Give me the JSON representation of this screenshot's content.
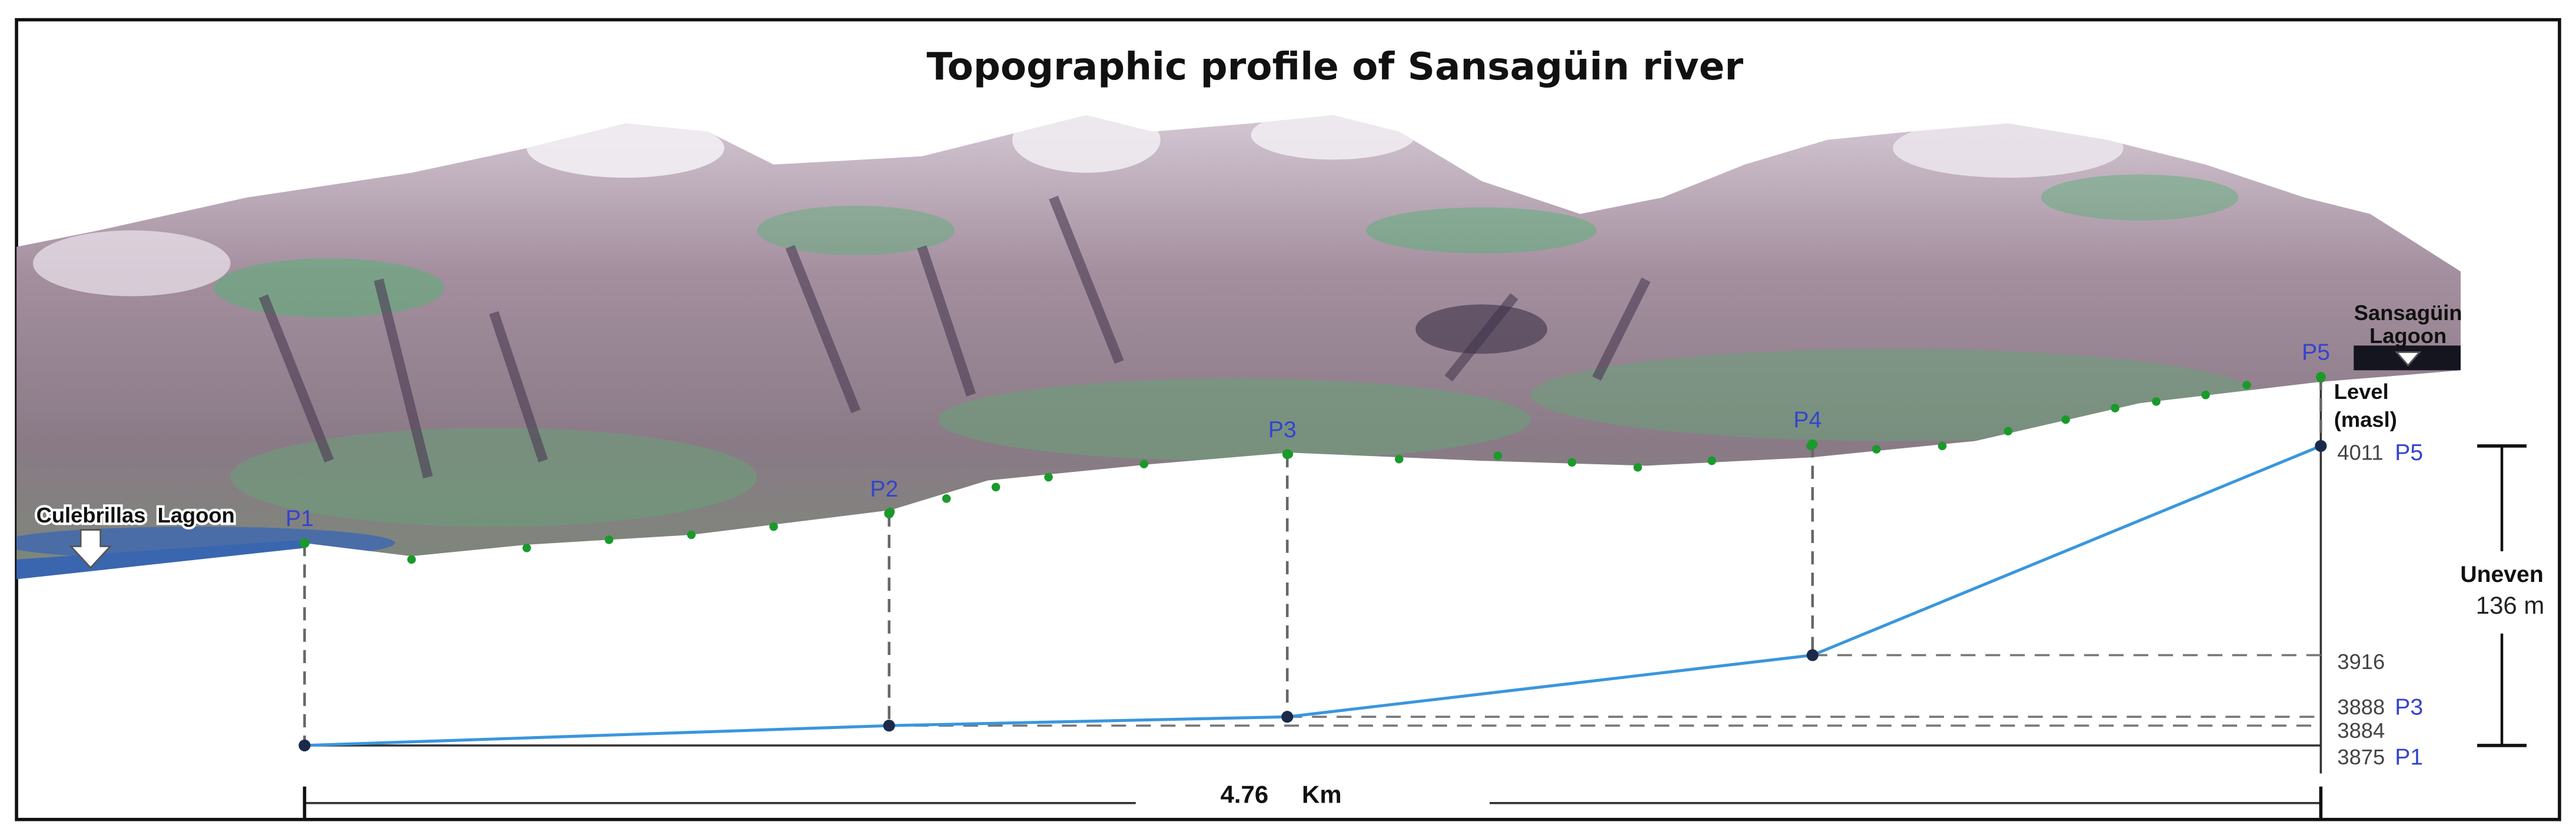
{
  "chart_data": {
    "type": "line",
    "title": "Topographic profile of Sansagüin river",
    "point_labels": [
      "P1",
      "P2",
      "P3",
      "P4",
      "P5"
    ],
    "x": [
      0,
      1.38,
      2.32,
      3.56,
      4.76
    ],
    "series": [
      {
        "color": "#3a96dd",
        "values": [
          3875,
          3884,
          3888,
          3916,
          4011
        ]
      }
    ],
    "xlim": [
      0,
      4.76
    ],
    "ylim": [
      3875,
      4011
    ],
    "yticks": [
      3875,
      3884,
      3888,
      3916,
      4011
    ],
    "ylabel": [
      "Level",
      "(masl)"
    ],
    "distance_unit": "Km",
    "range_label": "Uneven",
    "range_value": "136 m",
    "left_place": "Culebrillas  Lagoon",
    "right_place": [
      "Sansagüin",
      "Lagoon"
    ]
  }
}
